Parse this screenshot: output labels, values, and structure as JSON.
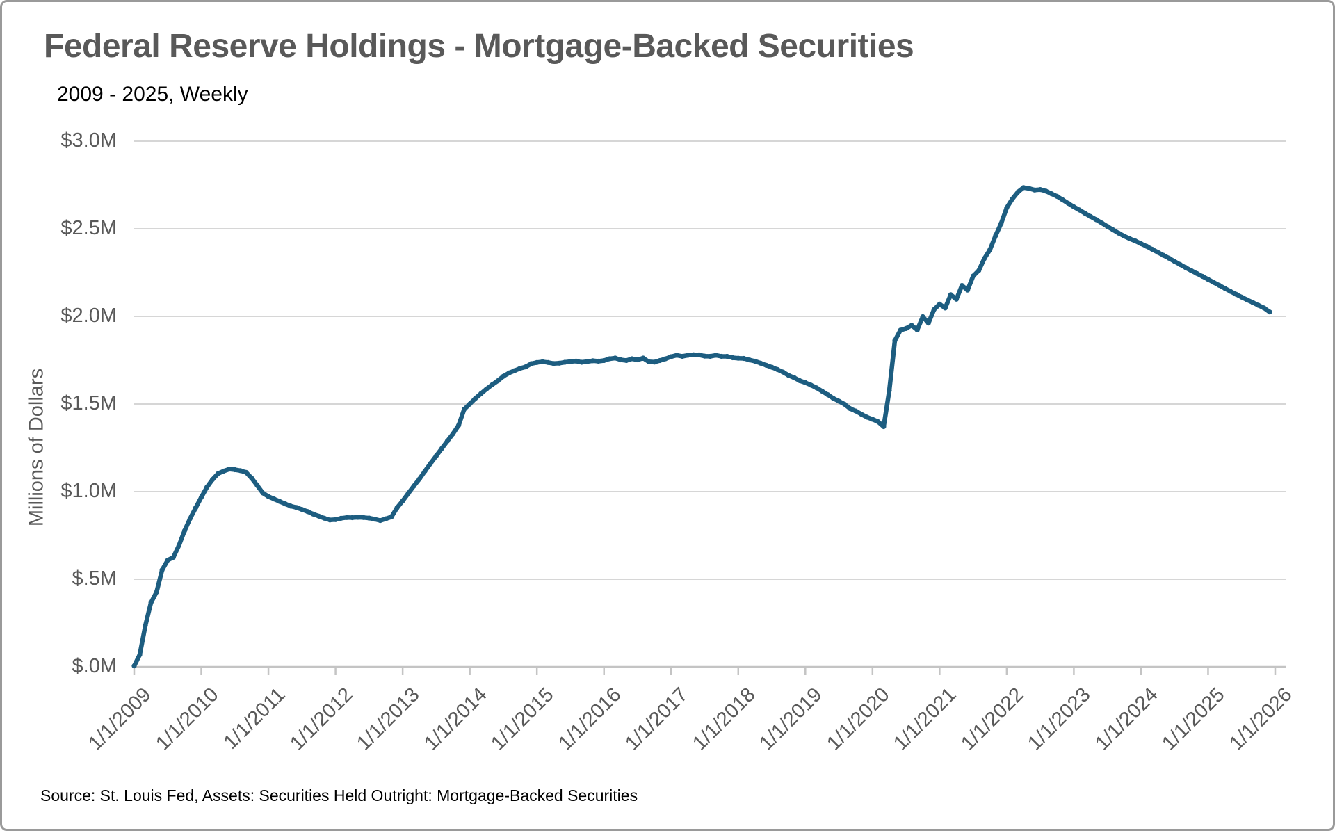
{
  "header": {
    "title": "Federal Reserve Holdings - Mortgage-Backed Securities",
    "subtitle": "2009 - 2025, Weekly"
  },
  "footer": {
    "source": "Source: St. Louis Fed, Assets: Securities Held Outright: Mortgage-Backed Securities"
  },
  "chart_data": {
    "type": "line",
    "title": "Federal Reserve Holdings - Mortgage-Backed Securities",
    "subtitle": "2009 - 2025, Weekly",
    "xlabel": "",
    "ylabel": "Millions of Dollars",
    "ylim": [
      0,
      3.0
    ],
    "ytick_values": [
      0,
      0.5,
      1.0,
      1.5,
      2.0,
      2.5,
      3.0
    ],
    "ytick_labels": [
      "$.0M",
      "$.5M",
      "$1.0M",
      "$1.5M",
      "$2.0M",
      "$2.5M",
      "$3.0M"
    ],
    "xtick_years": [
      2009,
      2010,
      2011,
      2012,
      2013,
      2014,
      2015,
      2016,
      2017,
      2018,
      2019,
      2020,
      2021,
      2022,
      2023,
      2024,
      2025,
      2026
    ],
    "xtick_labels": [
      "1/1/2009",
      "1/1/2010",
      "1/1/2011",
      "1/1/2012",
      "1/1/2013",
      "1/1/2014",
      "1/1/2015",
      "1/1/2016",
      "1/1/2017",
      "1/1/2018",
      "1/1/2019",
      "1/1/2020",
      "1/1/2021",
      "1/1/2022",
      "1/1/2023",
      "1/1/2024",
      "1/1/2025",
      "1/1/2026"
    ],
    "grid": "horizontal",
    "legend": "none",
    "line_color": "#1d5d80",
    "grid_color": "#d6d6d6",
    "axis_color": "#c4c4c4",
    "label_color": "#595959",
    "series": [
      {
        "name": "Mortgage-Backed Securities Held Outright",
        "x_start_year": 2009,
        "x_step_years": 0.0833333,
        "values": [
          0.005,
          0.069,
          0.236,
          0.366,
          0.427,
          0.553,
          0.609,
          0.625,
          0.693,
          0.776,
          0.846,
          0.908,
          0.968,
          1.025,
          1.069,
          1.103,
          1.117,
          1.128,
          1.125,
          1.12,
          1.11,
          1.077,
          1.035,
          0.992,
          0.972,
          0.958,
          0.944,
          0.93,
          0.917,
          0.909,
          0.898,
          0.886,
          0.872,
          0.86,
          0.848,
          0.838,
          0.84,
          0.848,
          0.852,
          0.851,
          0.853,
          0.852,
          0.849,
          0.843,
          0.835,
          0.845,
          0.856,
          0.908,
          0.947,
          0.99,
          1.032,
          1.072,
          1.118,
          1.161,
          1.204,
          1.246,
          1.289,
          1.33,
          1.378,
          1.47,
          1.5,
          1.532,
          1.559,
          1.586,
          1.61,
          1.632,
          1.658,
          1.677,
          1.69,
          1.703,
          1.712,
          1.73,
          1.737,
          1.741,
          1.737,
          1.731,
          1.733,
          1.738,
          1.742,
          1.745,
          1.738,
          1.742,
          1.747,
          1.744,
          1.748,
          1.758,
          1.762,
          1.752,
          1.748,
          1.758,
          1.752,
          1.762,
          1.741,
          1.739,
          1.748,
          1.758,
          1.77,
          1.778,
          1.772,
          1.778,
          1.781,
          1.78,
          1.773,
          1.772,
          1.778,
          1.772,
          1.772,
          1.764,
          1.761,
          1.76,
          1.751,
          1.744,
          1.733,
          1.721,
          1.71,
          1.697,
          1.682,
          1.663,
          1.65,
          1.633,
          1.622,
          1.608,
          1.592,
          1.573,
          1.553,
          1.532,
          1.516,
          1.499,
          1.474,
          1.46,
          1.442,
          1.425,
          1.413,
          1.399,
          1.371,
          1.577,
          1.862,
          1.921,
          1.931,
          1.949,
          1.923,
          1.998,
          1.962,
          2.039,
          2.07,
          2.048,
          2.124,
          2.098,
          2.176,
          2.15,
          2.23,
          2.262,
          2.33,
          2.38,
          2.46,
          2.53,
          2.62,
          2.67,
          2.71,
          2.735,
          2.73,
          2.721,
          2.724,
          2.715,
          2.7,
          2.685,
          2.665,
          2.645,
          2.625,
          2.607,
          2.588,
          2.57,
          2.552,
          2.533,
          2.513,
          2.494,
          2.475,
          2.458,
          2.443,
          2.43,
          2.415,
          2.4,
          2.383,
          2.366,
          2.349,
          2.332,
          2.314,
          2.296,
          2.278,
          2.261,
          2.245,
          2.228,
          2.211,
          2.194,
          2.177,
          2.16,
          2.143,
          2.126,
          2.11,
          2.094,
          2.079,
          2.063,
          2.048,
          2.025
        ]
      }
    ]
  }
}
